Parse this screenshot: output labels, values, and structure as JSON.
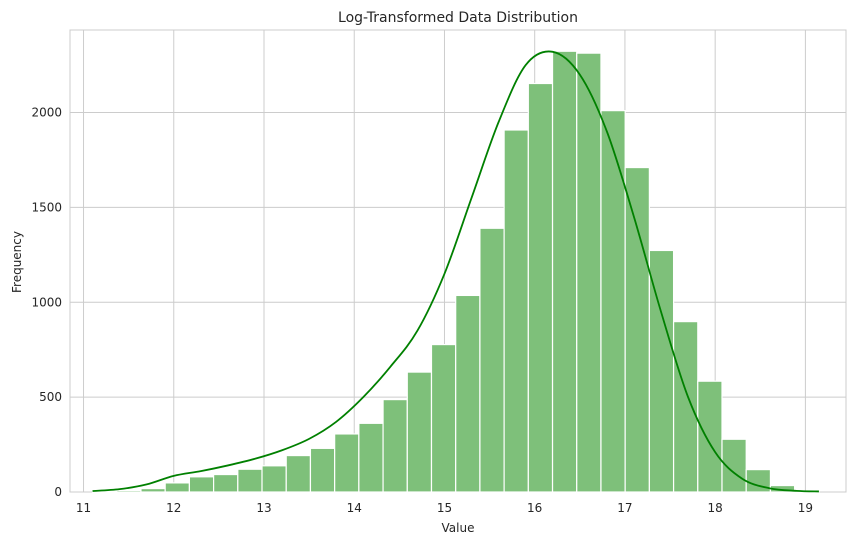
{
  "chart_data": {
    "type": "bar",
    "subtype": "histogram-with-kde",
    "title": "Log-Transformed Data Distribution",
    "xlabel": "Value",
    "ylabel": "Frequency",
    "xlim": [
      10.85,
      19.45
    ],
    "ylim": [
      0,
      2435
    ],
    "xticks": [
      11,
      12,
      13,
      14,
      15,
      16,
      17,
      18,
      19
    ],
    "yticks": [
      0,
      500,
      1000,
      1500,
      2000
    ],
    "grid": true,
    "bar_color": "#7ec07a",
    "line_color": "#008000",
    "bins": {
      "start": 11.1,
      "width": 0.2683,
      "counts": [
        3,
        8,
        18,
        48,
        80,
        92,
        120,
        138,
        192,
        230,
        306,
        362,
        487,
        632,
        777,
        1036,
        1390,
        1908,
        2153,
        2323,
        2313,
        2010,
        1710,
        1273,
        898,
        584,
        278,
        118,
        34,
        5
      ]
    },
    "kde": {
      "x": [
        11.1,
        11.4,
        11.7,
        12.0,
        12.3,
        12.6,
        12.9,
        13.2,
        13.5,
        13.8,
        14.1,
        14.4,
        14.7,
        15.0,
        15.3,
        15.6,
        15.9,
        16.2,
        16.5,
        16.8,
        17.1,
        17.4,
        17.7,
        18.0,
        18.3,
        18.6,
        18.9,
        19.15
      ],
      "y": [
        5,
        15,
        40,
        85,
        110,
        140,
        175,
        220,
        280,
        370,
        500,
        660,
        850,
        1150,
        1550,
        1950,
        2250,
        2320,
        2200,
        1900,
        1450,
        950,
        500,
        210,
        70,
        20,
        6,
        3
      ]
    }
  }
}
